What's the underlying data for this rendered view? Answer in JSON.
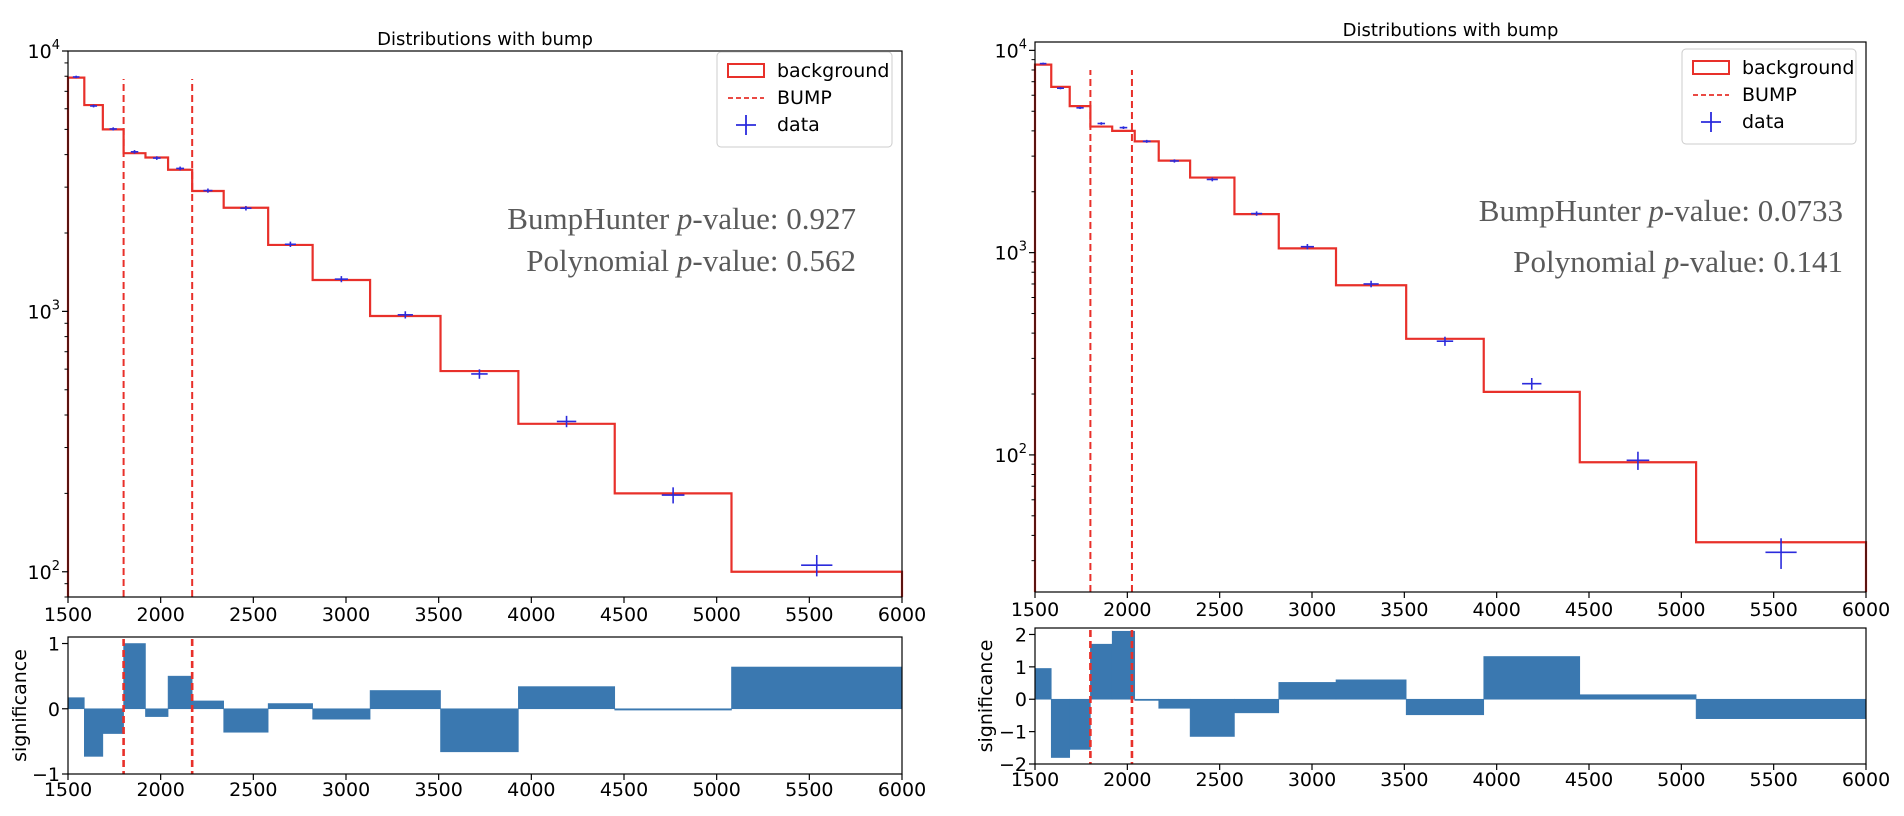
{
  "chart_data": [
    {
      "type": "bar",
      "title": "Distributions with bump",
      "x_scale": "linear",
      "y_scale": "log",
      "xlim": [
        1500,
        6000
      ],
      "ylim": [
        80,
        10000
      ],
      "xticks": [
        "1500",
        "2000",
        "2500",
        "3000",
        "3500",
        "4000",
        "4500",
        "5000",
        "5500",
        "6000"
      ],
      "yticks": [
        {
          "value": 100,
          "base": "10",
          "exp": "2"
        },
        {
          "value": 1000,
          "base": "10",
          "exp": "3"
        },
        {
          "value": 10000,
          "base": "10",
          "exp": "4"
        }
      ],
      "bin_edges": [
        1500,
        1588,
        1688,
        1800,
        1918,
        2040,
        2170,
        2340,
        2580,
        2820,
        3130,
        3510,
        3930,
        4450,
        5080,
        6000
      ],
      "series": [
        {
          "name": "background",
          "kind": "step-histogram",
          "color": "#e8302a",
          "values": [
            7900,
            6200,
            5000,
            4050,
            3900,
            3500,
            2900,
            2500,
            1800,
            1320,
            960,
            590,
            370,
            200,
            100
          ]
        },
        {
          "name": "data",
          "kind": "points-with-errors",
          "color": "#2b2bdc",
          "x": [
            1544,
            1638,
            1744,
            1859,
            1979,
            2105,
            2255,
            2460,
            2700,
            2975,
            3320,
            3720,
            4190,
            4765,
            5540
          ],
          "values": [
            7950,
            6150,
            5020,
            4100,
            3880,
            3540,
            2910,
            2490,
            1810,
            1330,
            970,
            575,
            378,
            197,
            106
          ],
          "errors": [
            89,
            78,
            71,
            64,
            62,
            59,
            54,
            50,
            43,
            36,
            31,
            24,
            19,
            14,
            10
          ]
        }
      ],
      "bump": {
        "name": "BUMP",
        "color": "#e8302a",
        "lines": [
          1800,
          2170
        ]
      },
      "legend": {
        "position": "upper right",
        "entries": [
          "background",
          "BUMP",
          "data"
        ]
      },
      "annotations": [
        {
          "prefix": "BumpHunter ",
          "italic": "p",
          "suffix": "-value: 0.927"
        },
        {
          "prefix": "Polynomial ",
          "italic": "p",
          "suffix": "-value: 0.562"
        }
      ],
      "significance_panel": {
        "ylabel": "significance",
        "ylim": [
          -1,
          1.1
        ],
        "yticks": [
          "−1",
          "0",
          "1"
        ],
        "ytick_values": [
          -1,
          0,
          1
        ],
        "color": "#3a78b0",
        "values": [
          0.17,
          -0.73,
          -0.38,
          1.0,
          -0.12,
          0.5,
          0.12,
          -0.36,
          0.08,
          -0.16,
          0.28,
          -0.66,
          0.34,
          -0.02,
          0.64
        ]
      }
    },
    {
      "type": "bar",
      "title": "Distributions with bump",
      "x_scale": "linear",
      "y_scale": "log",
      "xlim": [
        1500,
        6000
      ],
      "ylim": [
        21,
        11000
      ],
      "xticks": [
        "1500",
        "2000",
        "2500",
        "3000",
        "3500",
        "4000",
        "4500",
        "5000",
        "5500",
        "6000"
      ],
      "yticks": [
        {
          "value": 100,
          "base": "10",
          "exp": "2"
        },
        {
          "value": 1000,
          "base": "10",
          "exp": "3"
        },
        {
          "value": 10000,
          "base": "10",
          "exp": "4"
        }
      ],
      "bin_edges": [
        1500,
        1588,
        1688,
        1800,
        1918,
        2040,
        2170,
        2340,
        2580,
        2820,
        3130,
        3510,
        3930,
        4450,
        5080,
        6000
      ],
      "series": [
        {
          "name": "background",
          "kind": "step-histogram",
          "color": "#e8302a",
          "values": [
            8500,
            6600,
            5300,
            4200,
            4000,
            3550,
            2850,
            2350,
            1550,
            1050,
            690,
            375,
            205,
            92,
            37
          ]
        },
        {
          "name": "data",
          "kind": "points-with-errors",
          "color": "#2b2bdc",
          "x": [
            1544,
            1638,
            1744,
            1859,
            1979,
            2105,
            2255,
            2460,
            2700,
            2975,
            3320,
            3720,
            4190,
            4765,
            5540
          ],
          "values": [
            8600,
            6500,
            5200,
            4350,
            4150,
            3550,
            2840,
            2300,
            1560,
            1070,
            700,
            365,
            225,
            94,
            33
          ],
          "errors": [
            93,
            80,
            72,
            66,
            64,
            60,
            53,
            48,
            39,
            33,
            26,
            19,
            15,
            9.7,
            5.7
          ]
        }
      ],
      "bump": {
        "name": "BUMP",
        "color": "#e8302a",
        "lines": [
          1800,
          2025
        ]
      },
      "legend": {
        "position": "upper right",
        "entries": [
          "background",
          "BUMP",
          "data"
        ]
      },
      "annotations": [
        {
          "prefix": "BumpHunter ",
          "italic": "p",
          "suffix": "-value: 0.0733"
        },
        {
          "prefix": "Polynomial ",
          "italic": "p",
          "suffix": "-value: 0.141"
        }
      ],
      "significance_panel": {
        "ylabel": "significance",
        "ylim": [
          -2,
          2.2
        ],
        "yticks": [
          "−2",
          "−1",
          "0",
          "1",
          "2"
        ],
        "ytick_values": [
          -2,
          -1,
          0,
          1,
          2
        ],
        "color": "#3a78b0",
        "values": [
          0.95,
          -1.8,
          -1.55,
          1.7,
          2.1,
          0.0,
          -0.28,
          -1.15,
          -0.42,
          0.52,
          0.6,
          -0.48,
          1.32,
          0.14,
          -0.6
        ]
      }
    }
  ]
}
